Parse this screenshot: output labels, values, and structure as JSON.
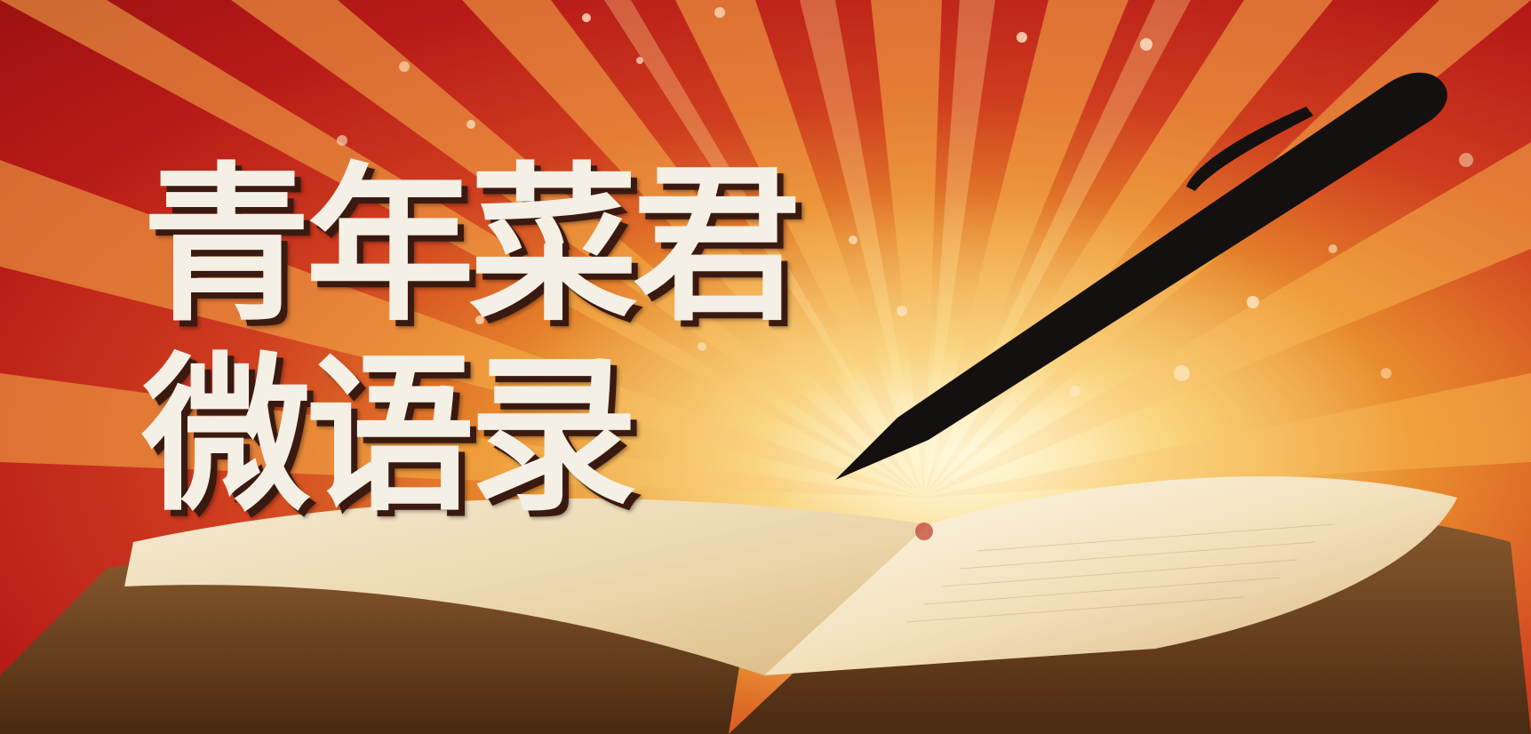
{
  "banner": {
    "title_line_1": "青年菜君",
    "title_line_2": "微语录"
  },
  "colors": {
    "background_red": "#b81a17",
    "ray_orange": "#e88a2c",
    "glow_yellow": "#f5c04e",
    "title_text": "#f5f0e6",
    "title_shadow": "#3a1a10",
    "pen": "#141010",
    "book_page": "#f1e2c4",
    "book_edge": "#6b4020"
  },
  "icons": {
    "pen": "pen-icon",
    "book": "open-book-illustration"
  }
}
